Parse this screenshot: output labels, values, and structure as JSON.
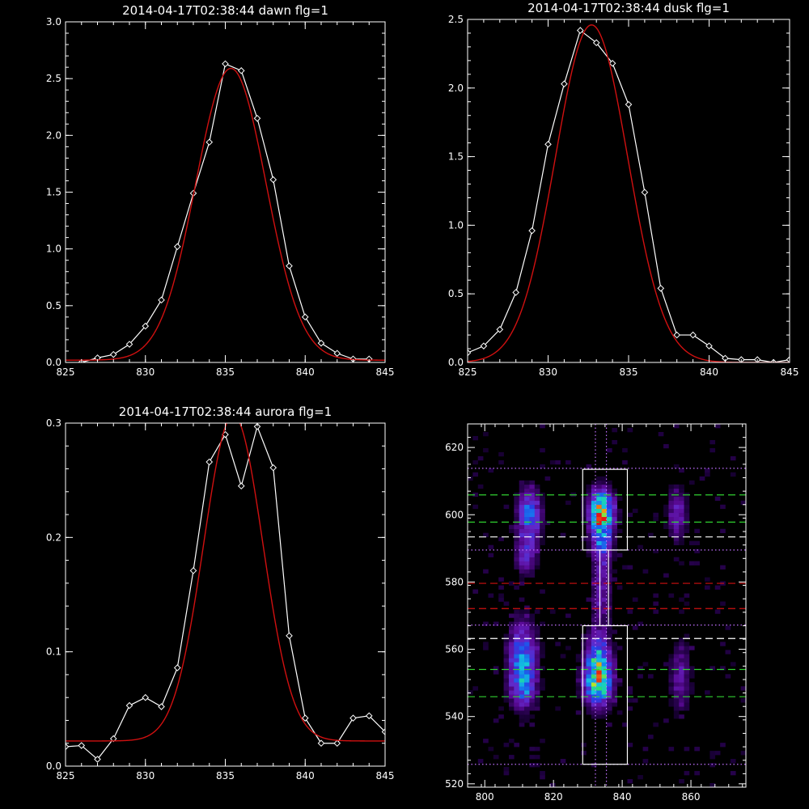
{
  "chart_data": [
    {
      "type": "line",
      "title": "2014-04-17T02:38:44 dawn flg=1",
      "xlim": [
        825,
        845
      ],
      "ylim": [
        0,
        3.0
      ],
      "xticks": [
        "825",
        "830",
        "835",
        "840",
        "845"
      ],
      "xtick_values": [
        825,
        830,
        835,
        840,
        845
      ],
      "yticks": [
        "0.0",
        "0.5",
        "1.0",
        "1.5",
        "2.0",
        "2.5",
        "3.0"
      ],
      "ytick_values": [
        0,
        0.5,
        1.0,
        1.5,
        2.0,
        2.5,
        3.0
      ],
      "series": [
        {
          "color": "#ffffff",
          "marker": "diamond",
          "x": [
            826,
            827,
            828,
            829,
            830,
            831,
            832,
            833,
            834,
            835,
            836,
            837,
            838,
            839,
            840,
            841,
            842,
            843,
            844
          ],
          "y": [
            0.0,
            0.04,
            0.07,
            0.16,
            0.32,
            0.55,
            1.02,
            1.49,
            1.94,
            2.63,
            2.57,
            2.15,
            1.61,
            0.85,
            0.4,
            0.17,
            0.08,
            0.03,
            0.03
          ]
        },
        {
          "color": "#d01010",
          "curve": "gaussian",
          "peak": 2.57,
          "center": 835.35,
          "sigma": 2.2,
          "baseline": 0.02
        }
      ]
    },
    {
      "type": "line",
      "title": "2014-04-17T02:38:44 dusk flg=1",
      "xlim": [
        825,
        845
      ],
      "ylim": [
        0,
        2.5
      ],
      "xticks": [
        "825",
        "830",
        "835",
        "840",
        "845"
      ],
      "xtick_values": [
        825,
        830,
        835,
        840,
        845
      ],
      "yticks": [
        "0.0",
        "0.5",
        "1.0",
        "1.5",
        "2.0",
        "2.5"
      ],
      "ytick_values": [
        0,
        0.5,
        1.0,
        1.5,
        2.0,
        2.5
      ],
      "series": [
        {
          "color": "#ffffff",
          "marker": "diamond",
          "x": [
            825,
            826,
            827,
            828,
            829,
            830,
            831,
            832,
            833,
            834,
            835,
            836,
            837,
            838,
            839,
            840,
            841,
            842,
            843,
            844,
            845
          ],
          "y": [
            0.07,
            0.12,
            0.24,
            0.51,
            0.96,
            1.59,
            2.03,
            2.42,
            2.33,
            2.18,
            1.88,
            1.24,
            0.54,
            0.2,
            0.2,
            0.12,
            0.03,
            0.02,
            0.02,
            0.0,
            0.02
          ]
        },
        {
          "color": "#d01010",
          "curve": "gaussian",
          "peak": 2.46,
          "center": 832.7,
          "sigma": 2.25,
          "baseline": 0.0
        }
      ]
    },
    {
      "type": "line",
      "title": "2014-04-17T02:38:44 aurora flg=1",
      "xlim": [
        825,
        845
      ],
      "ylim": [
        0,
        0.3
      ],
      "xticks": [
        "825",
        "830",
        "835",
        "840",
        "845"
      ],
      "xtick_values": [
        825,
        830,
        835,
        840,
        845
      ],
      "yticks": [
        "0.0",
        "0.1",
        "0.2",
        "0.3"
      ],
      "ytick_values": [
        0,
        0.1,
        0.2,
        0.3
      ],
      "series": [
        {
          "color": "#ffffff",
          "marker": "diamond",
          "x": [
            825,
            826,
            827,
            828,
            829,
            830,
            831,
            832,
            833,
            834,
            835,
            836,
            837,
            838,
            839,
            840,
            841,
            842,
            843,
            844,
            845
          ],
          "y": [
            0.017,
            0.018,
            0.006,
            0.024,
            0.053,
            0.06,
            0.052,
            0.086,
            0.171,
            0.266,
            0.29,
            0.245,
            0.297,
            0.261,
            0.114,
            0.042,
            0.02,
            0.02,
            0.042,
            0.044,
            0.03
          ]
        },
        {
          "color": "#d01010",
          "curve": "gaussian",
          "peak": 0.285,
          "center": 835.5,
          "sigma": 1.85,
          "baseline": 0.022
        }
      ]
    },
    {
      "type": "heatmap",
      "xlim": [
        795,
        876
      ],
      "ylim": [
        519,
        627
      ],
      "xticks": [
        "800",
        "820",
        "840",
        "860"
      ],
      "xtick_values": [
        800,
        820,
        840,
        860
      ],
      "yticks": [
        "520",
        "540",
        "560",
        "580",
        "600",
        "620"
      ],
      "ytick_values": [
        520,
        540,
        560,
        580,
        600,
        620
      ],
      "blobs": [
        {
          "x": 813,
          "y": 600,
          "sx": 2.2,
          "sy": 5.0,
          "amp": 0.45
        },
        {
          "x": 812,
          "y": 588,
          "sx": 2.0,
          "sy": 4.0,
          "amp": 0.28
        },
        {
          "x": 811,
          "y": 556,
          "sx": 2.6,
          "sy": 7.5,
          "amp": 0.55
        },
        {
          "x": 811,
          "y": 548,
          "sx": 2.2,
          "sy": 3.0,
          "amp": 0.22
        },
        {
          "x": 834,
          "y": 601,
          "sx": 2.2,
          "sy": 4.0,
          "amp": 1.0
        },
        {
          "x": 834,
          "y": 592,
          "sx": 2.0,
          "sy": 4.0,
          "amp": 0.35
        },
        {
          "x": 834,
          "y": 578,
          "sx": 1.8,
          "sy": 8.0,
          "amp": 0.22
        },
        {
          "x": 833,
          "y": 550,
          "sx": 2.6,
          "sy": 4.5,
          "amp": 0.78
        },
        {
          "x": 833,
          "y": 558,
          "sx": 2.3,
          "sy": 4.5,
          "amp": 0.48
        },
        {
          "x": 856,
          "y": 600,
          "sx": 1.8,
          "sy": 5.0,
          "amp": 0.26
        },
        {
          "x": 857,
          "y": 552,
          "sx": 2.0,
          "sy": 7.0,
          "amp": 0.2
        }
      ],
      "boxes": [
        {
          "x0": 828.5,
          "x1": 841.5,
          "y0": 589.5,
          "y1": 613.5,
          "color": "#ffffff"
        },
        {
          "x0": 828.5,
          "x1": 841.5,
          "y0": 525.8,
          "y1": 567.0,
          "color": "#ffffff"
        },
        {
          "x0": 833.5,
          "x1": 836.0,
          "y0": 567.0,
          "y1": 589.5,
          "color": "#ffffff"
        }
      ],
      "hlines": [
        {
          "y": 613.8,
          "color": "#c070ff",
          "style": "dotted"
        },
        {
          "y": 605.9,
          "color": "#30d030",
          "style": "dashed"
        },
        {
          "y": 597.8,
          "color": "#30d030",
          "style": "dashed"
        },
        {
          "y": 593.4,
          "color": "#ffffff",
          "style": "dashed"
        },
        {
          "y": 589.5,
          "color": "#c070ff",
          "style": "dotted"
        },
        {
          "y": 579.6,
          "color": "#d01010",
          "style": "dashed"
        },
        {
          "y": 572.1,
          "color": "#d01010",
          "style": "dashed"
        },
        {
          "y": 567.2,
          "color": "#c070ff",
          "style": "dotted"
        },
        {
          "y": 563.2,
          "color": "#ffffff",
          "style": "dashed"
        },
        {
          "y": 554.0,
          "color": "#30d030",
          "style": "dashed"
        },
        {
          "y": 545.9,
          "color": "#30d030",
          "style": "dashed"
        },
        {
          "y": 525.8,
          "color": "#c070ff",
          "style": "dotted"
        }
      ],
      "vlines": [
        {
          "x": 832.2,
          "color": "#c070ff",
          "style": "dotted"
        },
        {
          "x": 835.4,
          "color": "#c070ff",
          "style": "dotted"
        }
      ]
    }
  ]
}
